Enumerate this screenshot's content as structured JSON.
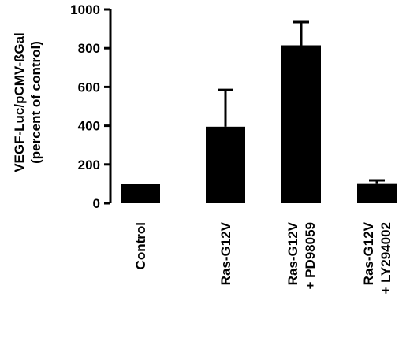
{
  "chart_data": {
    "type": "bar",
    "title": "",
    "ylabel": [
      "VEGF-Luc/pCMV-ßGal",
      "(percent of control)"
    ],
    "ylim": [
      0,
      1000
    ],
    "yticks": [
      "0",
      "200",
      "400",
      "600",
      "800",
      "1000"
    ],
    "categories": [
      [
        "Control"
      ],
      [
        "Ras-G12V"
      ],
      [
        "Ras-G12V",
        "+ PD98059"
      ],
      [
        "Ras-G12V",
        "+ LY294002"
      ]
    ],
    "values": [
      100,
      395,
      815,
      103
    ],
    "errors": [
      0,
      190,
      120,
      15
    ],
    "bar_color": "#000000"
  }
}
